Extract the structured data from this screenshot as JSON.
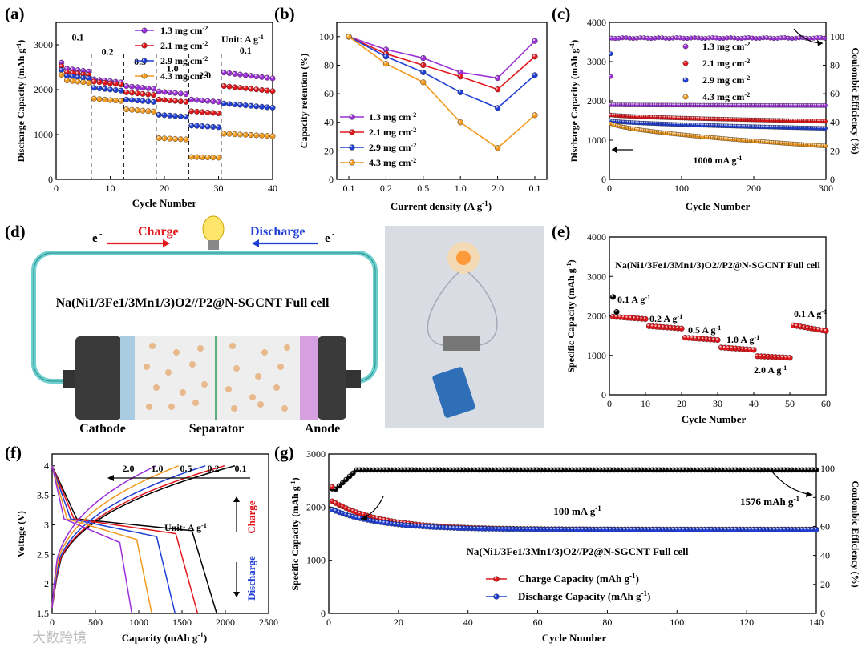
{
  "panel_labels": [
    "(a)",
    "(b)",
    "(c)",
    "(d)",
    "(e)",
    "(f)",
    "(g)"
  ],
  "colors": {
    "purple": "#9b30d9",
    "red": "#e3161b",
    "blue": "#1f3fd6",
    "orange": "#f29a1f",
    "black": "#000000",
    "teal": "#6ecfcf",
    "cathode": "#a9cce3",
    "anode": "#d59fe0",
    "particle": "#e8b98c"
  },
  "panel_d": {
    "e_left": "e",
    "e_sup": "-",
    "charge": "Charge",
    "discharge": "Discharge",
    "cell_label": "Na(Ni1/3Fe1/3Mn1/3)O2//P2@N-SGCNT Full cell",
    "cathode": "Cathode",
    "separator": "Separator",
    "anode": "Anode"
  },
  "chart_data": [
    {
      "id": "a",
      "type": "scatter",
      "xlabel": "Cycle Number",
      "ylabel": "Discharge Capacity (mAh g-1)",
      "xlim": [
        0,
        40
      ],
      "ylim": [
        0,
        3500
      ],
      "xticks": [
        0,
        10,
        20,
        30,
        40
      ],
      "yticks": [
        0,
        1000,
        2000,
        3000
      ],
      "unit_note": "Unit: A g-1",
      "rate_labels": [
        "0.1",
        "0.2",
        "0.5",
        "1.0",
        "2.0",
        "0.1"
      ],
      "segments": [
        [
          1,
          6
        ],
        [
          7,
          12
        ],
        [
          13,
          18
        ],
        [
          19,
          24
        ],
        [
          25,
          30
        ],
        [
          31,
          40
        ]
      ],
      "series": [
        {
          "name": "1.3 mg cm-2",
          "color": "#9b30d9",
          "levels": [
            2480,
            2230,
            2080,
            1960,
            1780,
            2380
          ]
        },
        {
          "name": "2.1 mg cm-2",
          "color": "#e3161b",
          "levels": [
            2400,
            2180,
            1940,
            1780,
            1520,
            2080
          ]
        },
        {
          "name": "2.9 mg cm-2",
          "color": "#1f3fd6",
          "levels": [
            2320,
            2040,
            1780,
            1440,
            1200,
            1690
          ]
        },
        {
          "name": "4.3 mg cm-2",
          "color": "#f29a1f",
          "levels": [
            2220,
            1800,
            1560,
            920,
            500,
            1020
          ]
        }
      ]
    },
    {
      "id": "b",
      "type": "line",
      "xlabel": "Current density (A g-1)",
      "ylabel": "Capacity retention (%)",
      "categories": [
        "0.1",
        "0.2",
        "0.5",
        "1.0",
        "2.0",
        "0.1"
      ],
      "ylim": [
        0,
        110
      ],
      "yticks": [
        0,
        20,
        40,
        60,
        80,
        100
      ],
      "series": [
        {
          "name": "1.3 mg cm-2",
          "color": "#9b30d9",
          "values": [
            100,
            91,
            85,
            75,
            71,
            97
          ]
        },
        {
          "name": "2.1 mg cm-2",
          "color": "#e3161b",
          "values": [
            100,
            88,
            80,
            72,
            63,
            86
          ]
        },
        {
          "name": "2.9 mg cm-2",
          "color": "#1f3fd6",
          "values": [
            100,
            86,
            75,
            61,
            50,
            73
          ]
        },
        {
          "name": "4.3 mg cm-2",
          "color": "#f29a1f",
          "values": [
            100,
            81,
            68,
            40,
            22,
            45
          ]
        }
      ]
    },
    {
      "id": "c",
      "type": "scatter",
      "xlabel": "Cycle Number",
      "ylabel": "Discharge Capacity (mAh g-1)",
      "y2label": "Coulombic Efficiency (%)",
      "xlim": [
        0,
        300
      ],
      "ylim": [
        0,
        4000
      ],
      "xticks": [
        0,
        100,
        200,
        300
      ],
      "yticks": [
        0,
        1000,
        2000,
        3000,
        4000
      ],
      "y2ticks": [
        0,
        20,
        40,
        60,
        80,
        100
      ],
      "annotation": "1000 mA g-1",
      "series": [
        {
          "name": "1.3 mg cm-2",
          "color": "#9b30d9",
          "start": 1900,
          "end": 1880
        },
        {
          "name": "2.1 mg cm-2",
          "color": "#e3161b",
          "start": 1650,
          "end": 1480
        },
        {
          "name": "2.9 mg cm-2",
          "color": "#1f3fd6",
          "start": 1500,
          "end": 1300
        },
        {
          "name": "4.3 mg cm-2",
          "color": "#f29a1f",
          "start": 1450,
          "end": 850
        }
      ],
      "ce": 99
    },
    {
      "id": "e",
      "type": "scatter",
      "xlabel": "Cycle Number",
      "ylabel": "Specific Capacity (mAh g-1)",
      "title": "Na(Ni1/3Fe1/3Mn1/3)O2//P2@N-SGCNT Full cell",
      "xlim": [
        0,
        60
      ],
      "ylim": [
        0,
        4000
      ],
      "xticks": [
        0,
        10,
        20,
        30,
        40,
        50,
        60
      ],
      "yticks": [
        0,
        1000,
        2000,
        3000,
        4000
      ],
      "rate_labels": [
        "0.1 A g-1",
        "0.2 A g-1",
        "0.5 A g-1",
        "1.0 A g-1",
        "2.0 A g-1",
        "0.1 A g-1"
      ],
      "segments": [
        [
          1,
          10,
          1980,
          1920
        ],
        [
          11,
          20,
          1740,
          1680
        ],
        [
          21,
          30,
          1450,
          1390
        ],
        [
          31,
          40,
          1200,
          1140
        ],
        [
          41,
          50,
          980,
          940
        ],
        [
          51,
          60,
          1760,
          1620
        ]
      ]
    },
    {
      "id": "f",
      "type": "line",
      "xlabel": "Capacity (mAh g-1)",
      "ylabel": "Voltage (V)",
      "xlim": [
        0,
        2500
      ],
      "ylim": [
        1.5,
        4.2
      ],
      "xticks": [
        0,
        500,
        1000,
        1500,
        2000,
        2500
      ],
      "yticks": [
        1.5,
        2.0,
        2.5,
        3.0,
        3.5,
        4.0
      ],
      "unit_note": "Unit: A g-1",
      "charge_label": "Charge",
      "discharge_label": "Discharge",
      "rates": [
        "2.0",
        "1.0",
        "0.5",
        "0.2",
        "0.1"
      ],
      "series": [
        {
          "name": "0.1",
          "color": "#000000",
          "dmax": 1900,
          "cmax": 2110,
          "plateau": 2.9
        },
        {
          "name": "0.2",
          "color": "#e3161b",
          "dmax": 1680,
          "cmax": 1990,
          "plateau": 2.85
        },
        {
          "name": "0.5",
          "color": "#1f3fd6",
          "dmax": 1420,
          "cmax": 1770,
          "plateau": 2.8
        },
        {
          "name": "1.0",
          "color": "#f29a1f",
          "dmax": 1150,
          "cmax": 1460,
          "plateau": 2.75
        },
        {
          "name": "2.0",
          "color": "#9b30d9",
          "dmax": 920,
          "cmax": 1200,
          "plateau": 2.7
        }
      ]
    },
    {
      "id": "g",
      "type": "scatter",
      "xlabel": "Cycle Number",
      "ylabel": "Specific Capacity (mAh g-1)",
      "y2label": "Coulombic Efficiency (%)",
      "xlim": [
        0,
        140
      ],
      "ylim": [
        0,
        3000
      ],
      "xticks": [
        0,
        20,
        40,
        60,
        80,
        100,
        120,
        140
      ],
      "yticks": [
        0,
        1000,
        2000,
        3000
      ],
      "y2ticks": [
        0,
        20,
        40,
        60,
        80,
        100
      ],
      "annotation": "100 mA g-1",
      "end_label": "1576 mAh g-1",
      "title": "Na(Ni1/3Fe1/3Mn1/3)O2//P2@N-SGCNT Full cell",
      "series": [
        {
          "name": "Charge Capacity (mAh g-1)",
          "color": "#e3161b",
          "start": 2150,
          "end": 1580
        },
        {
          "name": "Discharge Capacity (mAh g-1)",
          "color": "#1f3fd6",
          "start": 1980,
          "end": 1576
        }
      ],
      "ce": 99
    }
  ],
  "watermark": "大数跨境"
}
